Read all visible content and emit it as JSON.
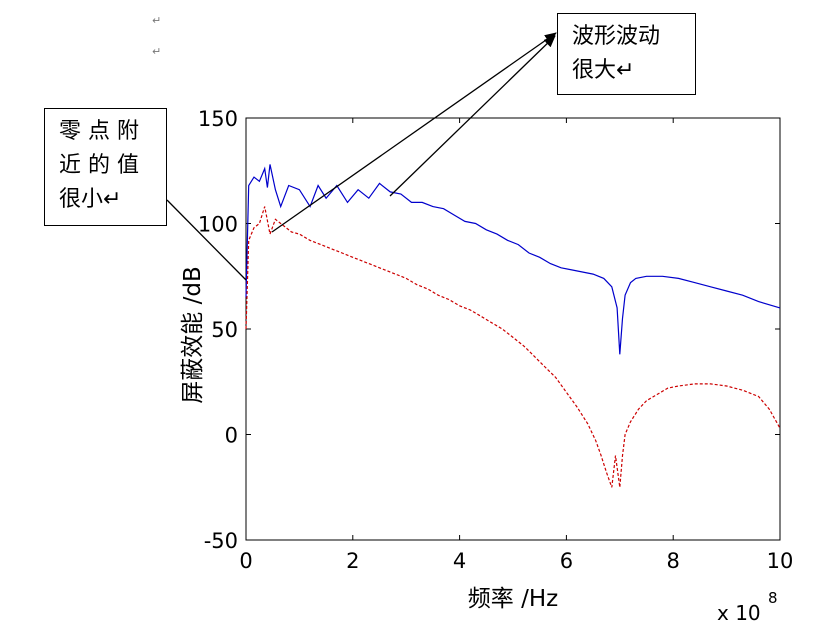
{
  "document": {
    "paragraph_marks": [
      "↵",
      "↵"
    ]
  },
  "annotations": {
    "left_note": {
      "lines": [
        "零 点 附",
        "近 的 值",
        "很小↵"
      ]
    },
    "right_note": {
      "lines": [
        "波形波动",
        "很大↵"
      ]
    }
  },
  "chart_data": {
    "type": "line",
    "title": "",
    "xlabel": "频率 /Hz",
    "ylabel": "屏蔽效能 /dB",
    "x_multiplier_label": "x 10",
    "x_multiplier_exponent": "8",
    "xlim": [
      0,
      10
    ],
    "ylim": [
      -50,
      150
    ],
    "xticks": [
      0,
      2,
      4,
      6,
      8,
      10
    ],
    "yticks": [
      -50,
      0,
      50,
      100,
      150
    ],
    "grid": false,
    "series": [
      {
        "color": "#0000cc",
        "style": "solid",
        "x": [
          0,
          0.05,
          0.15,
          0.25,
          0.35,
          0.4,
          0.45,
          0.55,
          0.65,
          0.8,
          1.0,
          1.2,
          1.35,
          1.5,
          1.7,
          1.9,
          2.1,
          2.3,
          2.5,
          2.7,
          2.9,
          3.1,
          3.3,
          3.5,
          3.7,
          3.9,
          4.1,
          4.3,
          4.5,
          4.7,
          4.9,
          5.1,
          5.3,
          5.5,
          5.7,
          5.9,
          6.1,
          6.3,
          6.5,
          6.7,
          6.85,
          6.95,
          7.0,
          7.05,
          7.1,
          7.2,
          7.3,
          7.5,
          7.8,
          8.1,
          8.4,
          8.7,
          9.0,
          9.3,
          9.6,
          10.0
        ],
        "y": [
          65,
          118,
          122,
          120,
          126,
          117,
          128,
          116,
          108,
          118,
          116,
          108,
          118,
          112,
          118,
          110,
          116,
          112,
          119,
          115,
          114,
          110,
          110,
          108,
          107,
          104,
          101,
          100,
          97,
          95,
          92,
          90,
          86,
          84,
          81,
          79,
          78,
          77,
          76,
          74,
          70,
          60,
          38,
          55,
          66,
          72,
          74,
          75,
          75,
          74,
          72,
          70,
          68,
          66,
          63,
          60
        ]
      },
      {
        "color": "#cc0000",
        "style": "dashed",
        "x": [
          0,
          0.05,
          0.15,
          0.25,
          0.35,
          0.45,
          0.55,
          0.65,
          0.75,
          0.85,
          1.0,
          1.2,
          1.4,
          1.6,
          1.8,
          2.0,
          2.2,
          2.4,
          2.6,
          2.8,
          3.0,
          3.2,
          3.4,
          3.6,
          3.8,
          4.0,
          4.2,
          4.4,
          4.6,
          4.8,
          5.0,
          5.2,
          5.4,
          5.6,
          5.8,
          6.0,
          6.2,
          6.4,
          6.55,
          6.65,
          6.75,
          6.85,
          6.92,
          7.0,
          7.05,
          7.1,
          7.2,
          7.35,
          7.5,
          7.7,
          7.9,
          8.1,
          8.4,
          8.7,
          9.0,
          9.3,
          9.6,
          9.8,
          10.0
        ],
        "y": [
          50,
          92,
          98,
          100,
          108,
          95,
          102,
          100,
          98,
          96,
          95,
          92,
          90,
          88,
          86,
          84,
          82,
          80,
          78,
          76,
          74,
          71,
          69,
          66,
          64,
          61,
          59,
          56,
          53,
          50,
          46,
          42,
          37,
          32,
          27,
          20,
          13,
          5,
          -3,
          -10,
          -18,
          -25,
          -10,
          -25,
          -10,
          0,
          6,
          12,
          16,
          19,
          22,
          23,
          24,
          24,
          23,
          21,
          18,
          12,
          3
        ]
      }
    ]
  },
  "colors": {
    "axis": "#000000",
    "blue_series": "#0000cc",
    "red_series": "#cc0000"
  }
}
